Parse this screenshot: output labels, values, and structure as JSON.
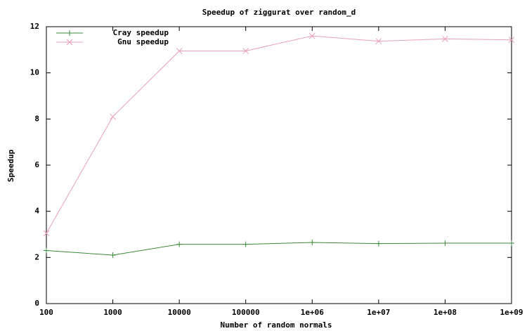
{
  "chart_data": {
    "type": "line",
    "title": "Speedup of ziggurat over random_d",
    "x_label": "Number of random normals",
    "y_label": "Speedup",
    "xscale": "log",
    "x": [
      100,
      1000,
      10000,
      100000,
      1000000,
      10000000,
      100000000,
      1000000000
    ],
    "series": [
      {
        "name": "Cray speedup",
        "color": "#3a8a3a",
        "marker": "plus",
        "values": [
          2.3,
          2.1,
          2.57,
          2.57,
          2.65,
          2.6,
          2.62,
          2.62
        ]
      },
      {
        "name": "Gnu speedup",
        "color": "#e8a0b8",
        "marker": "cross",
        "values": [
          3.05,
          8.1,
          10.95,
          10.95,
          11.6,
          11.37,
          11.47,
          11.43
        ]
      }
    ],
    "xlim": [
      100,
      1000000000
    ],
    "ylim": [
      0,
      12
    ],
    "xticks": [
      100,
      1000,
      10000,
      100000,
      {
        "value": 1000000,
        "label": "1e+06"
      },
      {
        "value": 10000000,
        "label": "1e+07"
      },
      {
        "value": 100000000,
        "label": "1e+08"
      },
      {
        "value": 1000000000,
        "label": "1e+09"
      }
    ],
    "yticks": [
      0,
      2,
      4,
      6,
      8,
      10,
      12
    ],
    "grid": false,
    "legend": "top-left"
  }
}
